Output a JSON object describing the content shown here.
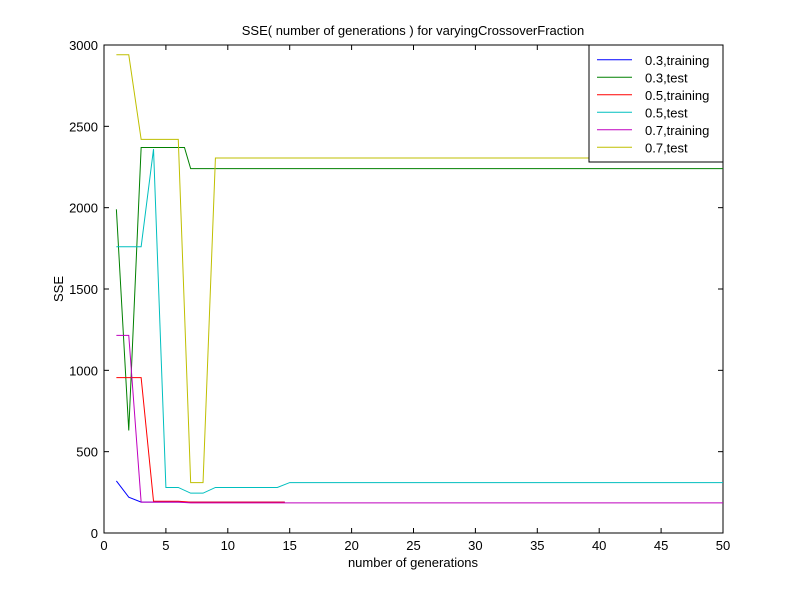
{
  "chart_data": {
    "type": "line",
    "title": "SSE( number of generations ) for varyingCrossoverFraction",
    "xlabel": "number of generations",
    "ylabel": "SSE",
    "xlim": [
      0,
      50
    ],
    "ylim": [
      0,
      3000
    ],
    "xticks": [
      0,
      5,
      10,
      15,
      20,
      25,
      30,
      35,
      40,
      45,
      50
    ],
    "yticks": [
      0,
      500,
      1000,
      1500,
      2000,
      2500,
      3000
    ],
    "grid": false,
    "legend_position": "top-right",
    "series": [
      {
        "name": "0.3,training",
        "color": "#0000ff",
        "x": [
          1,
          2,
          3,
          4,
          5,
          6,
          7,
          8,
          9,
          10,
          11,
          12,
          13,
          14,
          14.6
        ],
        "y": [
          320,
          220,
          190,
          190,
          190,
          190,
          190,
          190,
          190,
          190,
          190,
          190,
          190,
          190,
          190
        ]
      },
      {
        "name": "0.3,test",
        "color": "#008000",
        "x": [
          1,
          2,
          3,
          4,
          5,
          6,
          6.5,
          7,
          8,
          50
        ],
        "y": [
          1990,
          630,
          2370,
          2370,
          2370,
          2370,
          2370,
          2240,
          2240,
          2240
        ]
      },
      {
        "name": "0.5,training",
        "color": "#ff0000",
        "x": [
          1,
          2,
          3,
          4,
          5,
          6,
          7,
          14.6
        ],
        "y": [
          955,
          955,
          955,
          195,
          195,
          195,
          190,
          190
        ]
      },
      {
        "name": "0.5,test",
        "color": "#00bfbf",
        "x": [
          1,
          2,
          3,
          4,
          5,
          6,
          7,
          8,
          9,
          10,
          11,
          12,
          13,
          14,
          15,
          50
        ],
        "y": [
          1760,
          1760,
          1760,
          2360,
          280,
          280,
          245,
          245,
          280,
          280,
          280,
          280,
          280,
          280,
          310,
          310
        ]
      },
      {
        "name": "0.7,training",
        "color": "#bf00bf",
        "x": [
          1,
          2,
          3,
          4,
          5,
          6,
          7,
          8,
          14.6,
          20,
          30,
          40,
          50
        ],
        "y": [
          1215,
          1215,
          190,
          190,
          190,
          190,
          185,
          185,
          185,
          185,
          185,
          185,
          185
        ]
      },
      {
        "name": "0.7,test",
        "color": "#bfbf00",
        "x": [
          1,
          2,
          3,
          4,
          5,
          6,
          7,
          8,
          9,
          10,
          20,
          30,
          40,
          50
        ],
        "y": [
          2940,
          2940,
          2420,
          2420,
          2420,
          2420,
          310,
          310,
          2305,
          2305,
          2305,
          2305,
          2305,
          2305
        ]
      }
    ]
  }
}
